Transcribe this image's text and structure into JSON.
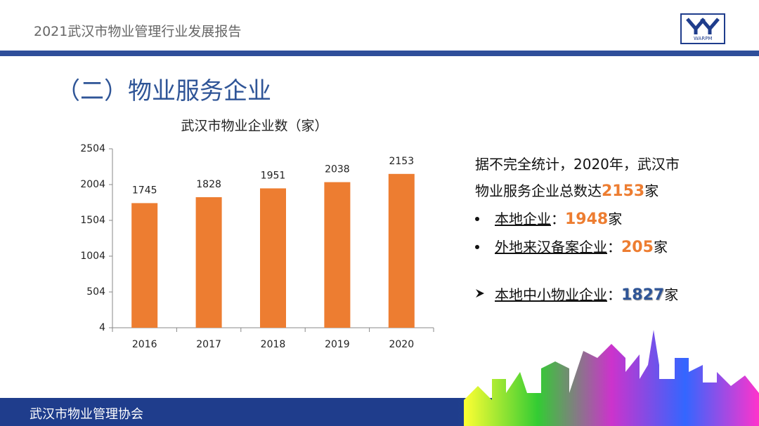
{
  "header": {
    "title": "2021武汉市物业管理行业发展报告",
    "logo_text": "WARPM"
  },
  "section_title": "（二）物业服务企业",
  "chart_data": {
    "type": "bar",
    "title": "武汉市物业企业数（家）",
    "categories": [
      "2016",
      "2017",
      "2018",
      "2019",
      "2020"
    ],
    "values": [
      1745,
      1828,
      1951,
      2038,
      2153
    ],
    "color": "#ed7d31",
    "ylim": [
      4,
      2504
    ],
    "yticks": [
      4,
      504,
      1004,
      1504,
      2004,
      2504
    ],
    "grid": false
  },
  "summary": {
    "line1": "据不完全统计，2020年，武汉市",
    "line2": "物业服务企业总数达",
    "number": "2153",
    "unit": "家"
  },
  "bullets": [
    {
      "label": "本地企业",
      "sep": "：",
      "number": "1948",
      "unit": "家"
    },
    {
      "label": "外地来汉备案企业",
      "sep": "：",
      "number": "205",
      "unit": "家"
    }
  ],
  "highlight": {
    "label": "本地中小物业企业",
    "sep": "：",
    "number": "1827",
    "unit": "家"
  },
  "footer": {
    "org": "武汉市物业管理协会"
  }
}
